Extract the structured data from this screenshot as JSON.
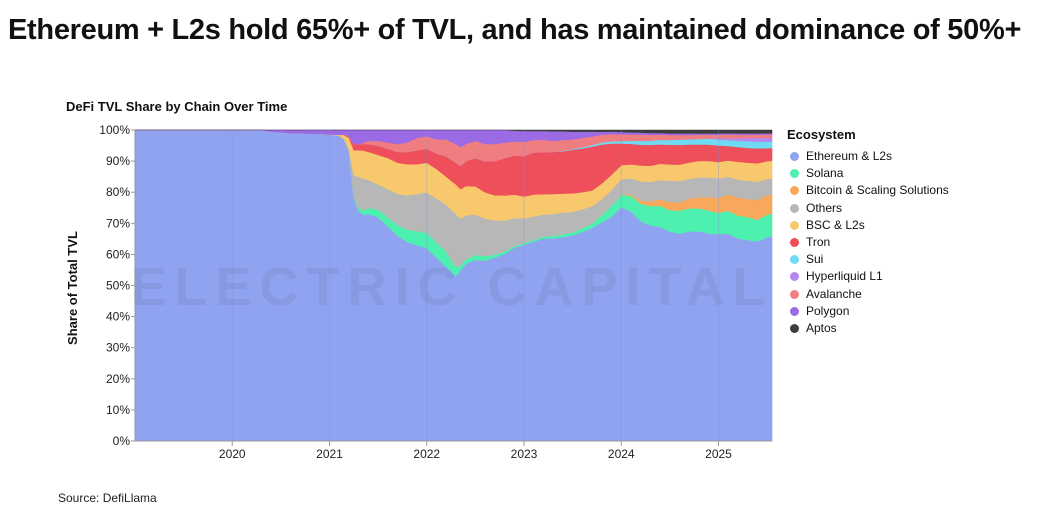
{
  "headline": "Ethereum + L2s hold 65%+ of TVL, and has maintained dominance of 50%+",
  "source": "Source: DefiLlama",
  "watermark": "ELECTRIC CAPITAL",
  "chart_data": {
    "type": "area",
    "stacked": true,
    "normalized": true,
    "title": "DeFi TVL Share by Chain Over Time",
    "xlabel": "",
    "ylabel": "Share of Total TVL",
    "xlim": [
      2019.0,
      2025.55
    ],
    "ylim": [
      0,
      100
    ],
    "y_ticks": [
      "0%",
      "10%",
      "20%",
      "30%",
      "40%",
      "50%",
      "60%",
      "70%",
      "80%",
      "90%",
      "100%"
    ],
    "x_ticks": [
      2020,
      2021,
      2022,
      2023,
      2024,
      2025
    ],
    "x_tick_labels": [
      "2020",
      "2021",
      "2022",
      "2023",
      "2024",
      "2025"
    ],
    "legend_title": "Ecosystem",
    "legend_position": "right",
    "x": [
      2019.0,
      2019.5,
      2020.0,
      2020.3,
      2020.4,
      2020.5,
      2020.6,
      2020.7,
      2020.8,
      2020.9,
      2021.0,
      2021.1,
      2021.15,
      2021.2,
      2021.25,
      2021.3,
      2021.35,
      2021.4,
      2021.5,
      2021.6,
      2021.7,
      2021.8,
      2021.9,
      2022.0,
      2022.1,
      2022.2,
      2022.3,
      2022.35,
      2022.4,
      2022.5,
      2022.6,
      2022.7,
      2022.8,
      2022.9,
      2023.0,
      2023.1,
      2023.2,
      2023.3,
      2023.4,
      2023.5,
      2023.6,
      2023.7,
      2023.8,
      2023.9,
      2024.0,
      2024.1,
      2024.2,
      2024.3,
      2024.4,
      2024.5,
      2024.6,
      2024.7,
      2024.8,
      2024.9,
      2025.0,
      2025.1,
      2025.2,
      2025.3,
      2025.4,
      2025.5,
      2025.55
    ],
    "series": [
      {
        "name": "Ethereum & L2s",
        "color": "#8fa3f1",
        "values": [
          100,
          100,
          100,
          100,
          99.5,
          99.3,
          99,
          99,
          98.8,
          98.8,
          98.6,
          98.2,
          97,
          93,
          78,
          74,
          72,
          73,
          72,
          69,
          66,
          64,
          63,
          62,
          59,
          56,
          53,
          55,
          57,
          58,
          58,
          59,
          60,
          62,
          63,
          64,
          65,
          65,
          65.5,
          66,
          67,
          68,
          70,
          72,
          75,
          73,
          69,
          67,
          66,
          64,
          63,
          64,
          64,
          63,
          63,
          64,
          62,
          61,
          60,
          63,
          64
        ]
      },
      {
        "name": "Solana",
        "color": "#4ef0b0",
        "values": [
          0,
          0,
          0,
          0,
          0,
          0,
          0,
          0,
          0,
          0,
          0,
          0,
          0,
          0,
          0.5,
          1,
          1.5,
          2,
          2.5,
          3,
          3.5,
          4,
          4.5,
          5,
          5,
          5,
          3,
          1.5,
          1.5,
          1.5,
          1.5,
          1,
          0.8,
          0.5,
          0.5,
          0.6,
          0.7,
          0.8,
          0.9,
          1,
          1.2,
          1.5,
          2.5,
          3.5,
          4,
          5,
          5.5,
          6,
          6.5,
          6.5,
          7,
          7,
          7,
          7,
          6.5,
          7,
          7,
          7,
          6.5,
          7,
          7
        ]
      },
      {
        "name": "Bitcoin & Scaling Solutions",
        "color": "#f7a85b",
        "values": [
          0,
          0,
          0,
          0,
          0,
          0,
          0,
          0,
          0,
          0,
          0,
          0,
          0,
          0,
          0,
          0,
          0,
          0,
          0,
          0,
          0,
          0,
          0,
          0,
          0,
          0,
          0,
          0,
          0,
          0,
          0,
          0,
          0,
          0,
          0,
          0,
          0,
          0,
          0,
          0,
          0,
          0,
          0,
          0,
          0,
          0.5,
          1,
          1.5,
          2,
          2.5,
          2.5,
          3,
          3.5,
          4,
          4.5,
          5,
          5.5,
          5.5,
          6,
          6,
          6
        ]
      },
      {
        "name": "Others",
        "color": "#b7b7b7",
        "values": [
          0,
          0,
          0,
          0,
          0,
          0,
          0,
          0,
          0,
          0,
          0,
          0,
          0.2,
          1,
          7,
          10,
          10,
          9,
          8,
          9,
          10,
          11,
          12,
          13,
          14,
          15,
          17,
          15,
          14,
          13,
          12,
          11,
          10,
          9,
          8,
          7.5,
          7,
          7,
          7,
          6.5,
          6,
          5.5,
          5,
          5,
          5,
          5,
          6,
          6,
          6,
          6.5,
          6.5,
          6,
          6,
          6,
          6,
          5.5,
          5.5,
          5.5,
          5.5,
          5,
          5
        ]
      },
      {
        "name": "BSC & L2s",
        "color": "#f7c96c",
        "values": [
          0,
          0,
          0,
          0,
          0,
          0,
          0,
          0,
          0,
          0,
          0,
          0.3,
          1.2,
          3.5,
          8,
          8.5,
          9,
          9,
          9.5,
          10,
          10,
          10,
          9.5,
          9.5,
          9.5,
          9,
          9.5,
          9.5,
          9.5,
          9,
          8.5,
          8,
          8,
          7.5,
          7,
          7,
          6.5,
          6.5,
          6,
          6,
          5.5,
          5,
          5,
          5,
          4.5,
          4.5,
          5,
          5,
          5,
          5,
          5,
          5,
          5,
          5,
          5,
          5,
          5.5,
          5.5,
          5.5,
          5.5,
          5.5
        ]
      },
      {
        "name": "Tron",
        "color": "#ef4f5a",
        "values": [
          0,
          0,
          0,
          0,
          0,
          0,
          0,
          0,
          0,
          0,
          0,
          0,
          0.2,
          0.5,
          2,
          2,
          2,
          2.5,
          3,
          3,
          3.5,
          4,
          4.5,
          4.5,
          5,
          6.5,
          7,
          7.5,
          8,
          9,
          10,
          11,
          12,
          12.5,
          13,
          13.5,
          13.5,
          13.5,
          13.5,
          14,
          14,
          14,
          12.5,
          10,
          7,
          6.5,
          6.5,
          6.5,
          6,
          6,
          6,
          5.5,
          5,
          5,
          5,
          4.5,
          4.5,
          4.5,
          4.5,
          4,
          4
        ]
      },
      {
        "name": "Sui",
        "color": "#6fdbf3",
        "values": [
          0,
          0,
          0,
          0,
          0,
          0,
          0,
          0,
          0,
          0,
          0,
          0,
          0,
          0,
          0,
          0,
          0,
          0,
          0,
          0,
          0,
          0,
          0,
          0,
          0,
          0,
          0,
          0,
          0,
          0,
          0,
          0,
          0,
          0,
          0,
          0,
          0,
          0,
          0.2,
          0.3,
          0.4,
          0.5,
          0.6,
          0.7,
          0.8,
          1,
          1.2,
          1.3,
          1.4,
          1.5,
          1.6,
          1.6,
          1.7,
          1.8,
          1.8,
          1.8,
          1.9,
          2,
          2,
          2,
          2
        ]
      },
      {
        "name": "Hyperliquid L1",
        "color": "#b788ef",
        "values": [
          0,
          0,
          0,
          0,
          0,
          0,
          0,
          0,
          0,
          0,
          0,
          0,
          0,
          0,
          0,
          0,
          0,
          0,
          0,
          0,
          0,
          0,
          0,
          0,
          0,
          0,
          0,
          0,
          0,
          0,
          0,
          0,
          0,
          0,
          0,
          0,
          0,
          0,
          0,
          0,
          0,
          0,
          0,
          0,
          0,
          0,
          0,
          0,
          0,
          0,
          0,
          0,
          0,
          0,
          0.3,
          0.6,
          0.8,
          1,
          1.1,
          1.2,
          1.2
        ]
      },
      {
        "name": "Avalanche",
        "color": "#f07d80",
        "values": [
          0,
          0,
          0,
          0,
          0,
          0,
          0,
          0,
          0,
          0,
          0,
          0,
          0,
          0,
          0,
          0,
          0.5,
          1,
          1.5,
          2,
          2.5,
          3,
          4,
          4,
          4.5,
          5.5,
          6,
          6,
          5.5,
          5.5,
          5.5,
          5.5,
          5,
          4.5,
          4.5,
          4,
          4,
          3.5,
          3.5,
          3,
          3,
          2.8,
          2.5,
          2.3,
          2.2,
          2,
          2,
          1.8,
          1.6,
          1.5,
          1.4,
          1.3,
          1.3,
          1.2,
          1.2,
          1.1,
          1.1,
          1,
          1,
          1,
          1
        ]
      },
      {
        "name": "Polygon",
        "color": "#9b6be6",
        "values": [
          0,
          0,
          0,
          0,
          0.5,
          0.7,
          1,
          1,
          1.2,
          1.2,
          1.4,
          1.5,
          1.4,
          2,
          4.5,
          4.5,
          4,
          3.5,
          3.5,
          4,
          4.5,
          4,
          2.5,
          2,
          3,
          3,
          4.5,
          5.5,
          4.5,
          3.5,
          4.5,
          4.5,
          4,
          3.5,
          3.5,
          2.9,
          2.8,
          3.1,
          2.8,
          2.5,
          2,
          1.5,
          1,
          0.8,
          0.7,
          0.7,
          0.6,
          0.6,
          0.5,
          0.5,
          0.5,
          0.5,
          0.4,
          0.4,
          0.4,
          0.4,
          0.4,
          0.4,
          0.4,
          0.4,
          0.4
        ]
      },
      {
        "name": "Aptos",
        "color": "#3d3d3d",
        "values": [
          0,
          0,
          0,
          0,
          0,
          0,
          0,
          0,
          0,
          0,
          0,
          0,
          0,
          0,
          0,
          0,
          0,
          0,
          0,
          0,
          0,
          0,
          0,
          0,
          0,
          0,
          0,
          0,
          0,
          0,
          0,
          0,
          0,
          0.2,
          0.3,
          0.3,
          0.3,
          0.4,
          0.4,
          0.5,
          0.5,
          0.5,
          0.5,
          0.5,
          0.6,
          0.7,
          0.8,
          0.9,
          0.9,
          1,
          1,
          1,
          1,
          1,
          1,
          1,
          1,
          1,
          1,
          1,
          1
        ]
      }
    ]
  }
}
